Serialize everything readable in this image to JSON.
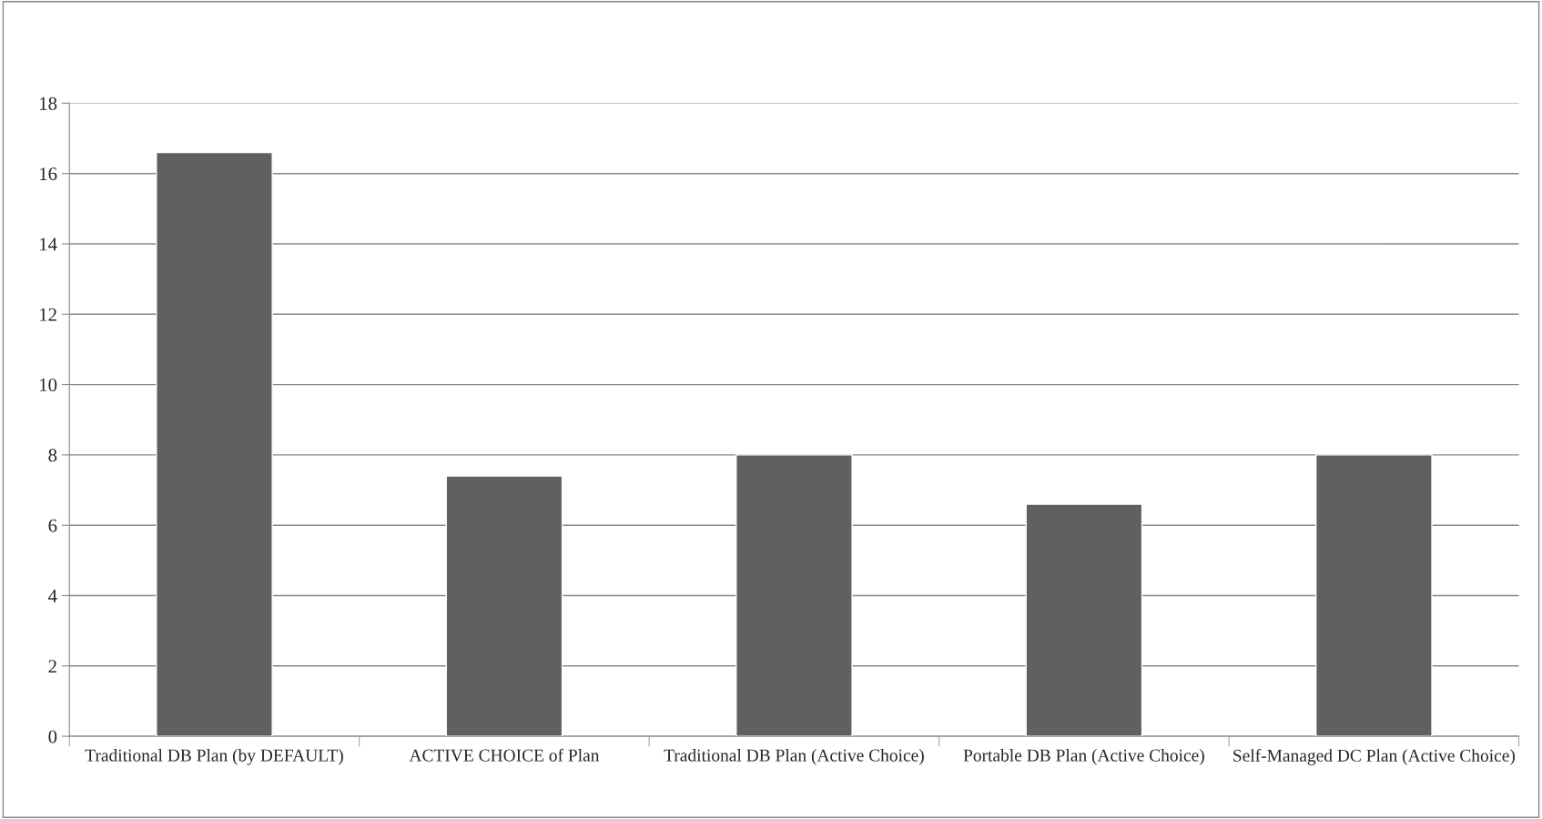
{
  "chart_data": {
    "type": "bar",
    "categories": [
      "Traditional DB Plan (by DEFAULT)",
      "ACTIVE CHOICE of Plan",
      "Traditional DB Plan (Active Choice)",
      "Portable DB Plan (Active Choice)",
      "Self-Managed DC Plan (Active Choice)"
    ],
    "values": [
      16.6,
      7.4,
      8.0,
      6.6,
      8.0
    ],
    "color": "#606060",
    "ylim": [
      0,
      18
    ],
    "yticks": [
      0,
      2,
      4,
      6,
      8,
      10,
      12,
      14,
      16,
      18
    ],
    "grid": "y"
  }
}
